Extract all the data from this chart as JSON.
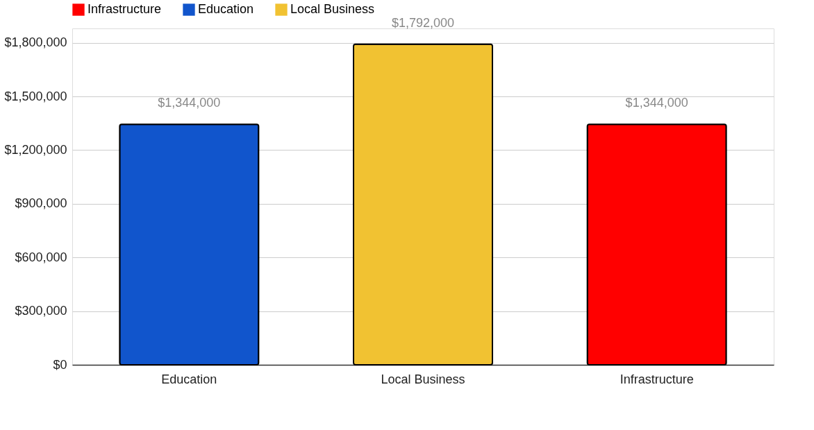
{
  "chart_data": {
    "type": "bar",
    "stacked": true,
    "categories": [
      "Education",
      "Local Business",
      "Infrastructure"
    ],
    "series": [
      {
        "name": "Infrastructure",
        "color": "#ff0000",
        "values": [
          null,
          null,
          1344000
        ]
      },
      {
        "name": "Education",
        "color": "#1155cc",
        "values": [
          1344000,
          null,
          null
        ]
      },
      {
        "name": "Local Business",
        "color": "#f1c232",
        "values": [
          null,
          1792000,
          null
        ]
      }
    ],
    "totals": [
      "$1,344,000",
      "$1,792,000",
      "$1,344,000"
    ],
    "ylim": [
      0,
      1880000
    ],
    "yticks": [
      {
        "value": 0,
        "label": "$0"
      },
      {
        "value": 300000,
        "label": "$300,000"
      },
      {
        "value": 600000,
        "label": "$600,000"
      },
      {
        "value": 900000,
        "label": "$900,000"
      },
      {
        "value": 1200000,
        "label": "$1,200,000"
      },
      {
        "value": 1500000,
        "label": "$1,500,000"
      },
      {
        "value": 1800000,
        "label": "$1,800,000"
      }
    ],
    "grid": "y",
    "legend": "top"
  }
}
